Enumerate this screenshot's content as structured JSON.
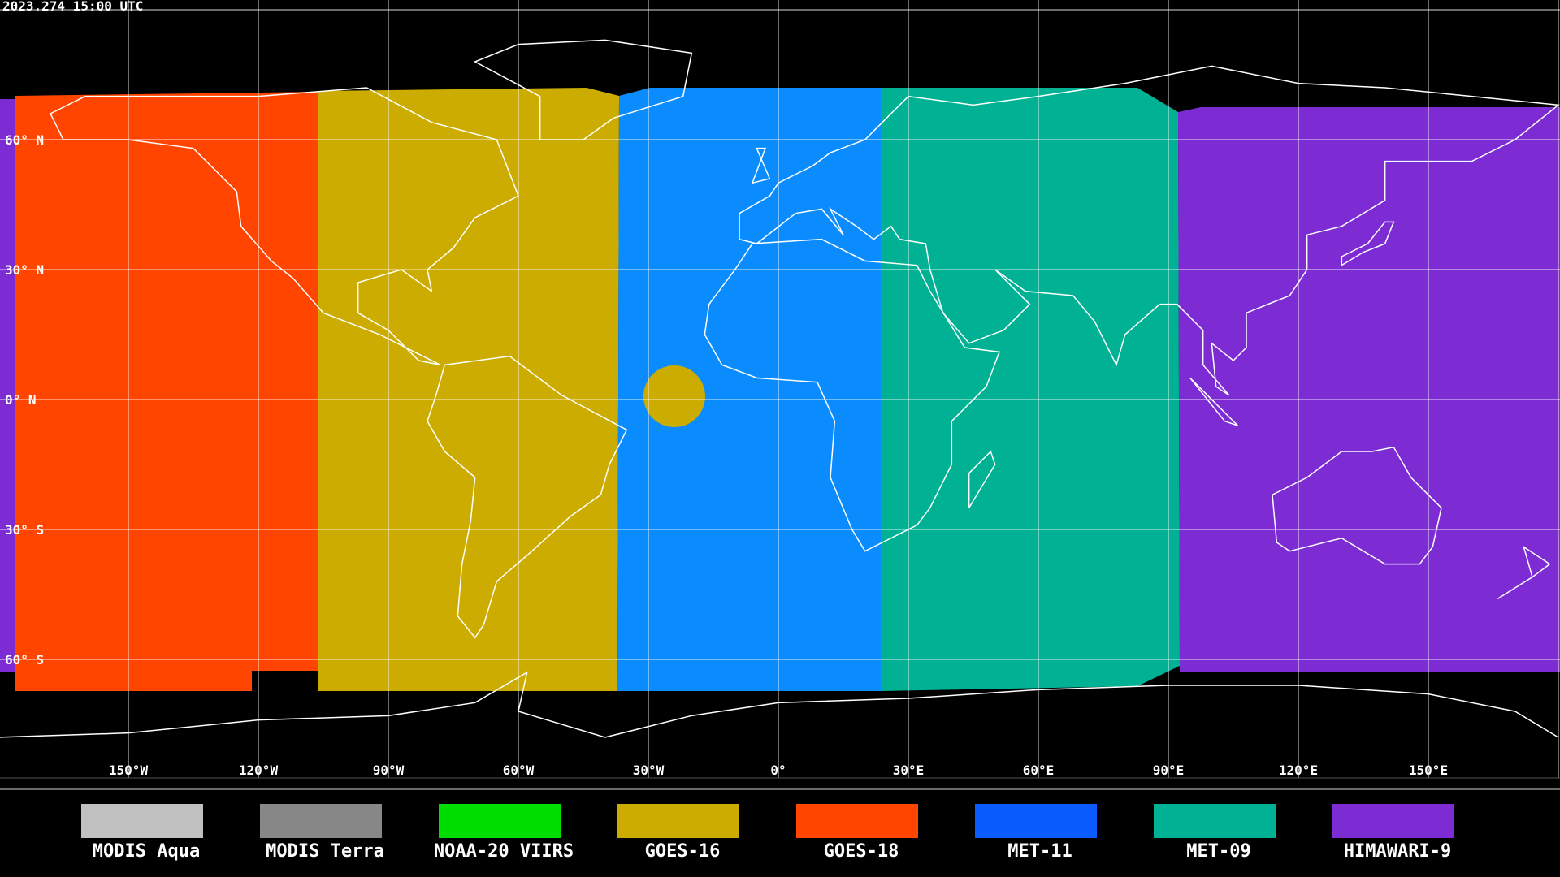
{
  "timestamp": "2023.274 15:00 UTC",
  "lat_labels": [
    "60° N",
    "30° N",
    "0° N",
    "30° S",
    "60° S"
  ],
  "lon_labels": [
    "150°W",
    "120°W",
    "90°W",
    "60°W",
    "30°W",
    "0°",
    "30°E",
    "60°E",
    "90°E",
    "120°E",
    "150°E"
  ],
  "legend": [
    {
      "name": "MODIS Aqua",
      "color": "#c0c0c0"
    },
    {
      "name": "MODIS Terra",
      "color": "#878787"
    },
    {
      "name": "NOAA-20 VIIRS",
      "color": "#00dd00"
    },
    {
      "name": "GOES-16",
      "color": "#ccac00"
    },
    {
      "name": "GOES-18",
      "color": "#ff4500"
    },
    {
      "name": "MET-11",
      "color": "#0a5cff"
    },
    {
      "name": "MET-09",
      "color": "#00b194"
    },
    {
      "name": "HIMAWARI-9",
      "color": "#7d2cd4"
    }
  ]
}
